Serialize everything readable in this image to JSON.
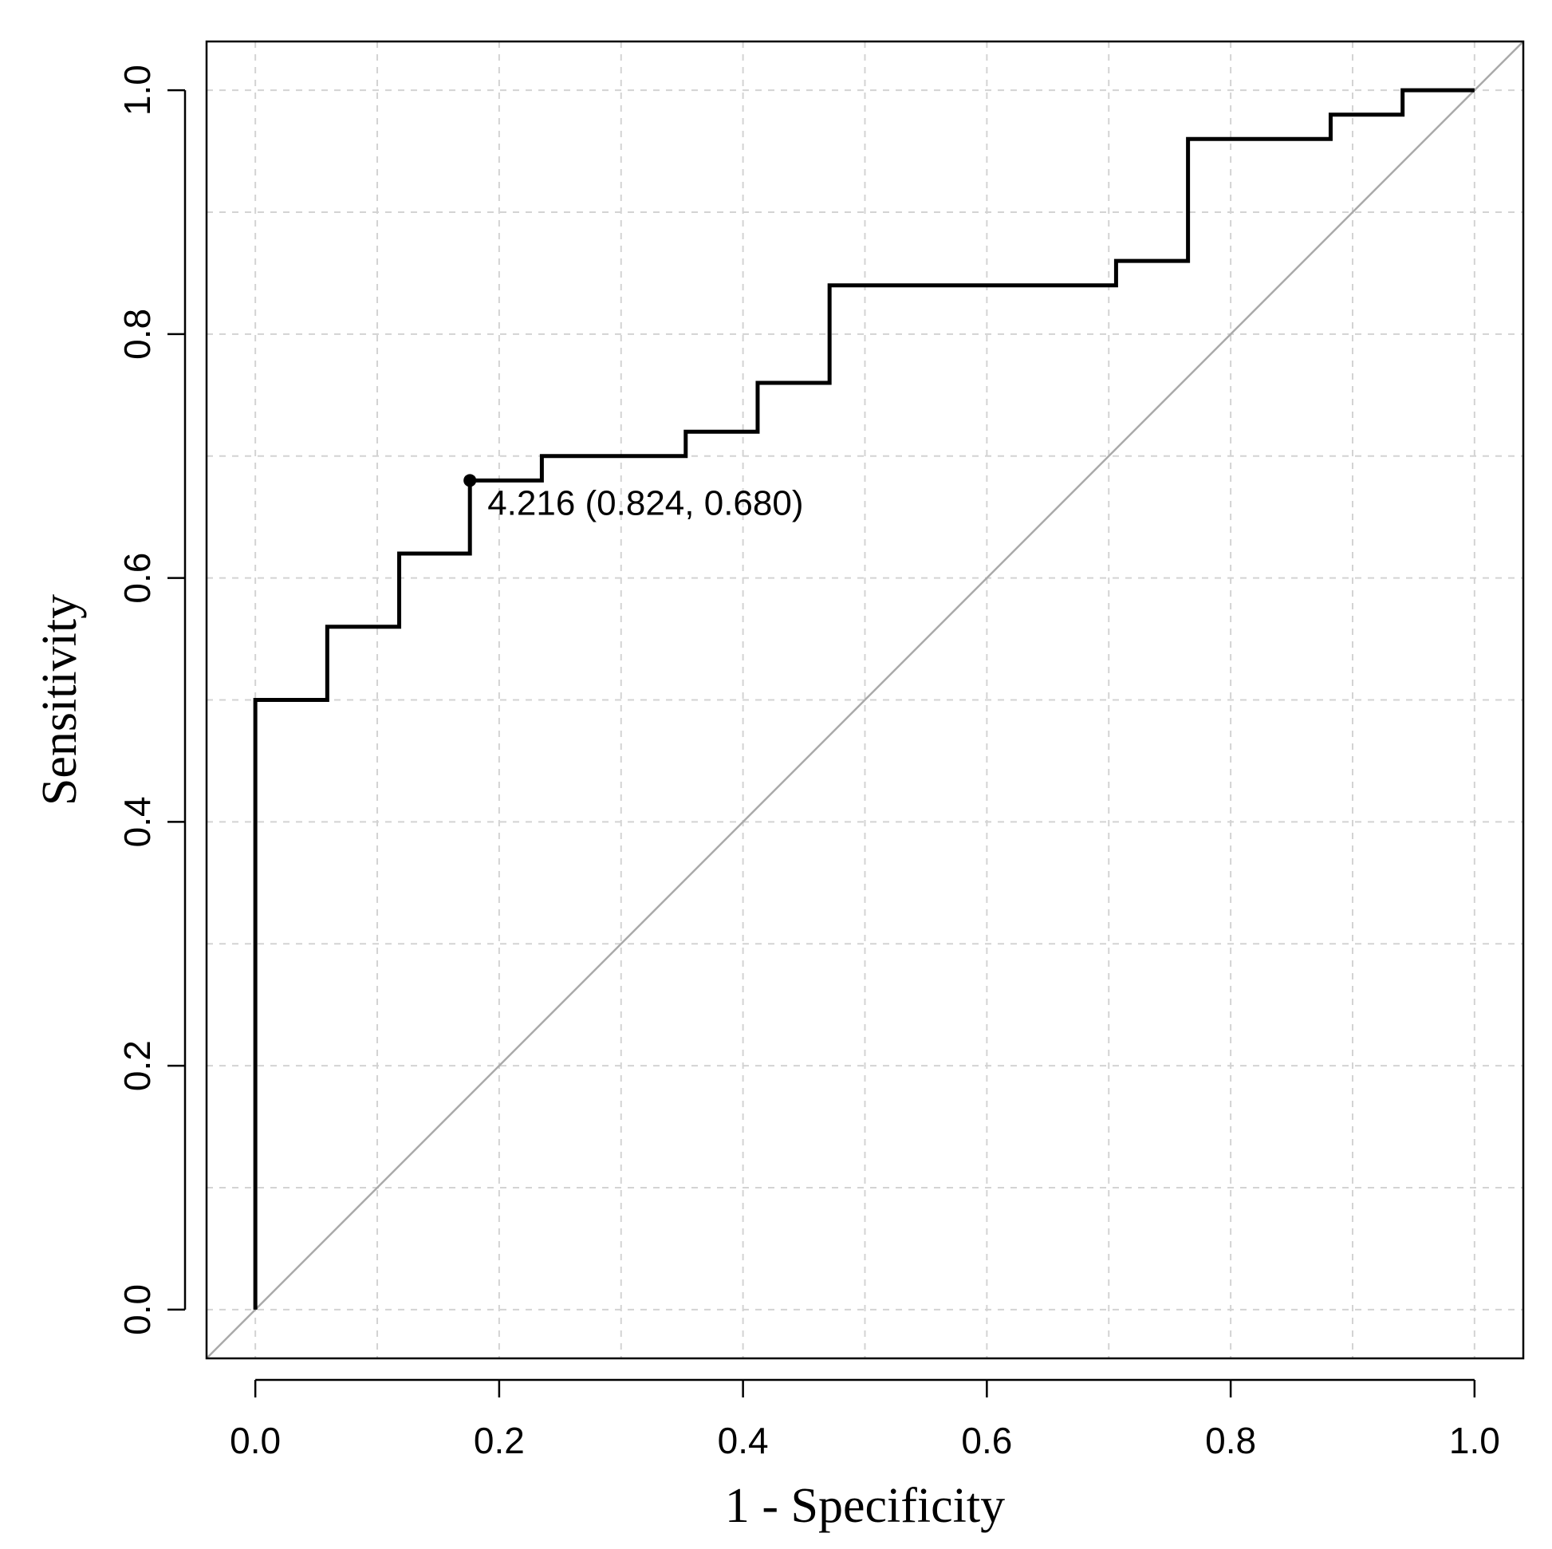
{
  "chart_data": {
    "type": "line",
    "title": "",
    "xlabel": "1 - Specificity",
    "ylabel": "Sensitivity",
    "xlim": [
      -0.04,
      1.04
    ],
    "ylim": [
      -0.04,
      1.04
    ],
    "grid": true,
    "x_ticks": [
      0.0,
      0.2,
      0.4,
      0.6,
      0.8,
      1.0
    ],
    "y_ticks": [
      0.0,
      0.2,
      0.4,
      0.6,
      0.8,
      1.0
    ],
    "x_tick_labels": [
      "0.0",
      "0.2",
      "0.4",
      "0.6",
      "0.8",
      "1.0"
    ],
    "y_tick_labels": [
      "0.0",
      "0.2",
      "0.4",
      "0.6",
      "0.8",
      "1.0"
    ],
    "grid_values": [
      0.0,
      0.1,
      0.2,
      0.3,
      0.4,
      0.5,
      0.6,
      0.7,
      0.8,
      0.9,
      1.0
    ],
    "series": [
      {
        "name": "ROC curve",
        "color": "#000000",
        "x": [
          0.0,
          0.0,
          0.059,
          0.059,
          0.118,
          0.118,
          0.176,
          0.176,
          0.235,
          0.235,
          0.353,
          0.353,
          0.412,
          0.412,
          0.471,
          0.471,
          0.706,
          0.706,
          0.765,
          0.765,
          0.882,
          0.882,
          0.941,
          0.941,
          1.0
        ],
        "y": [
          0.0,
          0.5,
          0.5,
          0.56,
          0.56,
          0.62,
          0.62,
          0.68,
          0.68,
          0.7,
          0.7,
          0.72,
          0.72,
          0.76,
          0.76,
          0.84,
          0.84,
          0.86,
          0.86,
          0.96,
          0.96,
          0.98,
          0.98,
          1.0,
          1.0
        ]
      },
      {
        "name": "reference diagonal",
        "color": "#aaaaaa",
        "x": [
          -0.04,
          1.04
        ],
        "y": [
          -0.04,
          1.04
        ]
      }
    ],
    "annotations": [
      {
        "x": 0.176,
        "y": 0.68,
        "text": "4.216 (0.824, 0.680)"
      }
    ]
  }
}
